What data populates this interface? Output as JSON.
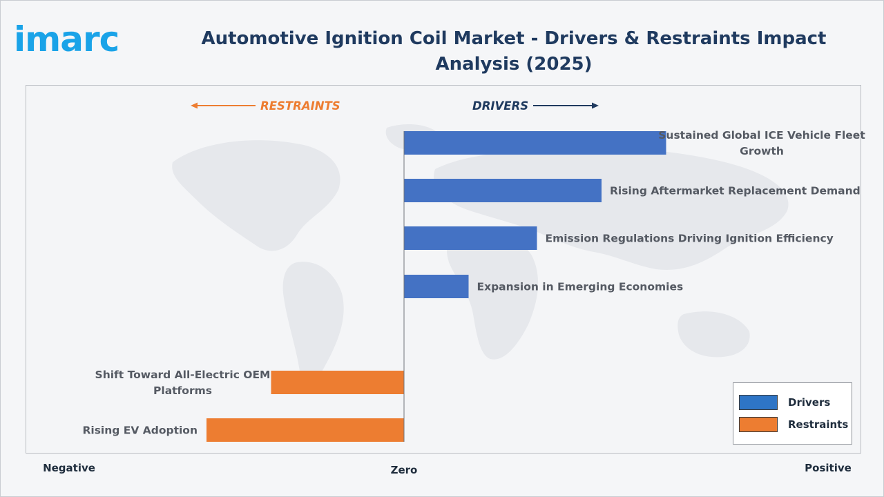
{
  "header": {
    "logo_text": "imarc",
    "title": "Automotive Ignition Coil Market - Drivers & Restraints Impact Analysis (2025)"
  },
  "directions": {
    "restraints": "RESTRAINTS",
    "drivers": "DRIVERS"
  },
  "axis": {
    "negative": "Negative",
    "zero": "Zero",
    "positive": "Positive"
  },
  "legend": {
    "drivers": "Drivers",
    "restraints": "Restraints"
  },
  "colors": {
    "drivers": "#4472c4",
    "restraints": "#ed7d31",
    "drivers_legend": "#2e75c6",
    "restraints_legend": "#ed7d31",
    "drivers_text": "#1f3a5f",
    "restraints_text": "#ed7d31"
  },
  "chart_data": {
    "type": "bar",
    "orientation": "horizontal-diverging",
    "title": "Automotive Ignition Coil Market - Drivers & Restraints Impact Analysis (2025)",
    "xlim": [
      -1,
      1
    ],
    "grid": false,
    "legend_position": "bottom-right",
    "categories": [
      "Sustained Global ICE Vehicle Fleet Growth",
      "Rising Aftermarket Replacement Demand",
      "Emission Regulations Driving Ignition Efficiency",
      "Expansion in Emerging Economies",
      "Shift Toward All-Electric OEM Platforms",
      "Rising EV Adoption"
    ],
    "series": [
      {
        "name": "Drivers",
        "values": [
          0.69,
          0.52,
          0.35,
          0.17,
          null,
          null
        ]
      },
      {
        "name": "Restraints",
        "values": [
          null,
          null,
          null,
          null,
          -0.35,
          -0.52
        ]
      }
    ]
  }
}
